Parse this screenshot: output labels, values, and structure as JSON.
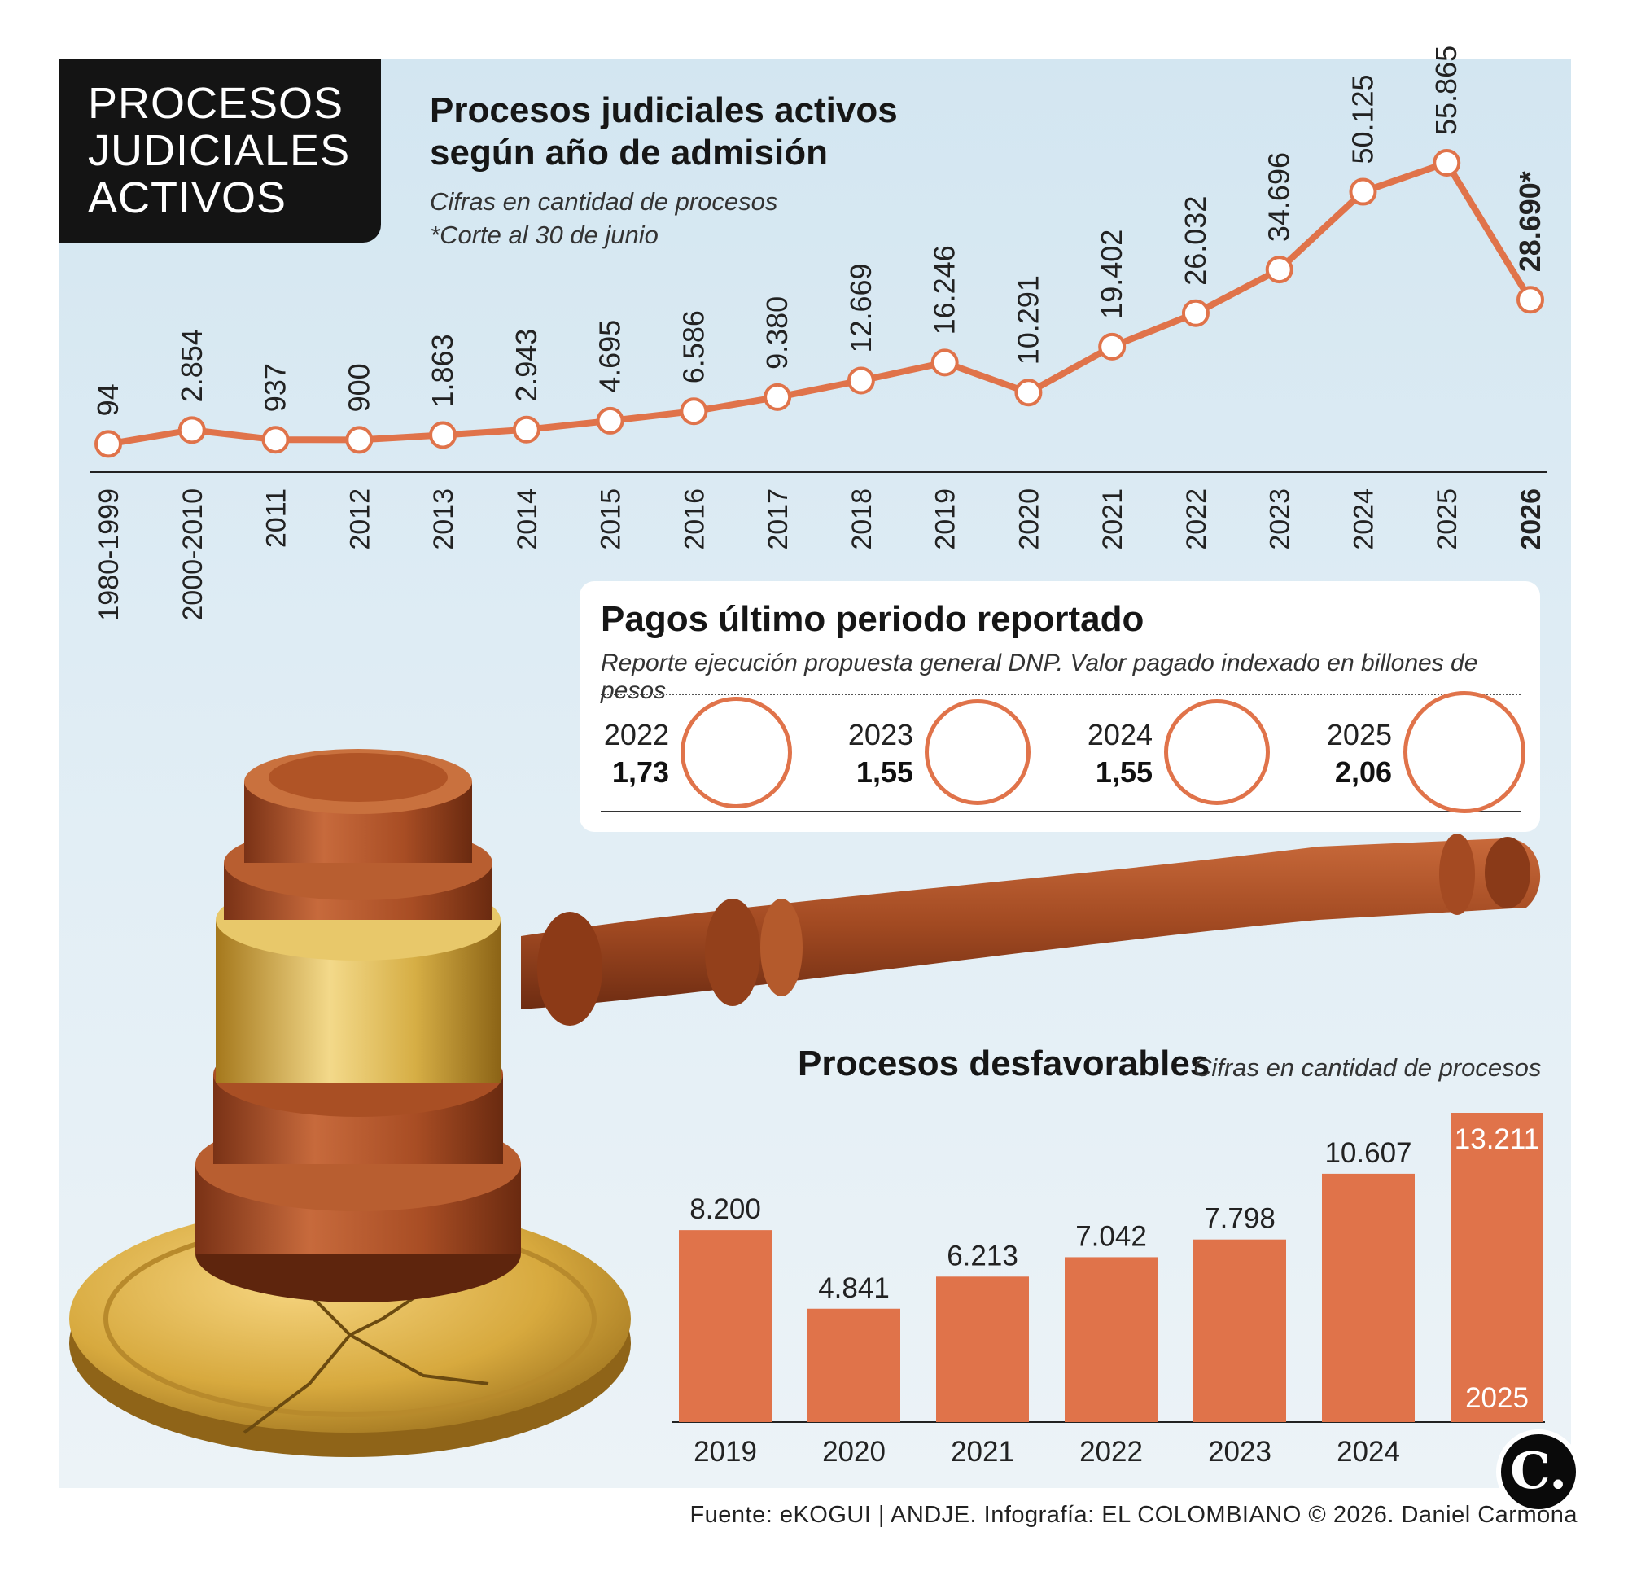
{
  "header": {
    "title_lines": [
      "PROCESOS",
      "JUDICIALES",
      "ACTIVOS"
    ]
  },
  "colors": {
    "accent": "#e0734a",
    "bar_fill": "#e0734a",
    "title_box": "#141414",
    "background": "#d9e9f2"
  },
  "chart_data": [
    {
      "type": "line",
      "title": "Procesos judiciales activos según año de admisión",
      "subtitle_1": "Cifras en cantidad de procesos",
      "subtitle_2": "*Corte al 30 de junio",
      "xlabel": "",
      "ylabel": "",
      "grid": false,
      "categories": [
        "1980-1999",
        "2000-2010",
        "2011",
        "2012",
        "2013",
        "2014",
        "2015",
        "2016",
        "2017",
        "2018",
        "2019",
        "2020",
        "2021",
        "2022",
        "2023",
        "2024",
        "2025",
        "2026"
      ],
      "values": [
        94,
        2854,
        937,
        900,
        1863,
        2943,
        4695,
        6586,
        9380,
        12669,
        16246,
        10291,
        19402,
        26032,
        34696,
        50125,
        55865,
        28690
      ],
      "labels": [
        "94",
        "2.854",
        "937",
        "900",
        "1.863",
        "2.943",
        "4.695",
        "6.586",
        "9.380",
        "12.669",
        "16.246",
        "10.291",
        "19.402",
        "26.032",
        "34.696",
        "50.125",
        "55.865",
        "28.690*"
      ],
      "highlight_category": "2026"
    },
    {
      "type": "bubble",
      "title": "Pagos último periodo reportado",
      "subtitle": "Reporte ejecución propuesta general DNP. Valor pagado indexado en billones de pesos",
      "categories": [
        "2022",
        "2023",
        "2024",
        "2025"
      ],
      "values": [
        1.73,
        1.55,
        1.55,
        2.06
      ],
      "labels": [
        "1,73",
        "1,55",
        "1,55",
        "2,06"
      ]
    },
    {
      "type": "bar",
      "title": "Procesos desfavorables",
      "subtitle": "Cifras en cantidad de procesos",
      "xlabel": "",
      "ylabel": "",
      "grid": false,
      "categories": [
        "2019",
        "2020",
        "2021",
        "2022",
        "2023",
        "2024",
        "2025"
      ],
      "values": [
        8200,
        4841,
        6213,
        7042,
        7798,
        10607,
        13211
      ],
      "labels": [
        "8.200",
        "4.841",
        "6.213",
        "7.042",
        "7.798",
        "10.607",
        "13.211"
      ]
    }
  ],
  "footer": {
    "source": "Fuente: eKOGUI | ANDJE. Infografía: EL COLOMBIANO © 2026. Daniel Carmona",
    "logo_letter": "C."
  }
}
